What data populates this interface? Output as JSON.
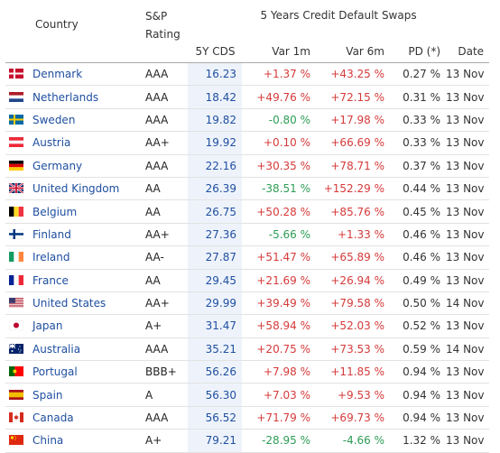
{
  "header": {
    "country": "Country",
    "rating_line1": "S&P",
    "rating_line2": "Rating",
    "group": "5 Years Credit Default Swaps",
    "cds": "5Y CDS",
    "var1m": "Var 1m",
    "var6m": "Var 6m",
    "pd": "PD (*)",
    "date": "Date"
  },
  "rows": [
    {
      "country": "Denmark",
      "flag": "flag-denmark-icon",
      "rating": "AAA",
      "cds": "16.23",
      "var1m": "+1.37 %",
      "var6m": "+43.25 %",
      "pd": "0.27 %",
      "date": "13 Nov"
    },
    {
      "country": "Netherlands",
      "flag": "flag-netherlands-icon",
      "rating": "AAA",
      "cds": "18.42",
      "var1m": "+49.76 %",
      "var6m": "+72.15 %",
      "pd": "0.31 %",
      "date": "13 Nov"
    },
    {
      "country": "Sweden",
      "flag": "flag-sweden-icon",
      "rating": "AAA",
      "cds": "19.82",
      "var1m": "-0.80 %",
      "var6m": "+17.98 %",
      "pd": "0.33 %",
      "date": "13 Nov"
    },
    {
      "country": "Austria",
      "flag": "flag-austria-icon",
      "rating": "AA+",
      "cds": "19.92",
      "var1m": "+0.10 %",
      "var6m": "+66.69 %",
      "pd": "0.33 %",
      "date": "13 Nov"
    },
    {
      "country": "Germany",
      "flag": "flag-germany-icon",
      "rating": "AAA",
      "cds": "22.16",
      "var1m": "+30.35 %",
      "var6m": "+78.71 %",
      "pd": "0.37 %",
      "date": "13 Nov"
    },
    {
      "country": "United Kingdom",
      "flag": "flag-uk-icon",
      "rating": "AA",
      "cds": "26.39",
      "var1m": "-38.51 %",
      "var6m": "+152.29 %",
      "pd": "0.44 %",
      "date": "13 Nov"
    },
    {
      "country": "Belgium",
      "flag": "flag-belgium-icon",
      "rating": "AA",
      "cds": "26.75",
      "var1m": "+50.28 %",
      "var6m": "+85.76 %",
      "pd": "0.45 %",
      "date": "13 Nov"
    },
    {
      "country": "Finland",
      "flag": "flag-finland-icon",
      "rating": "AA+",
      "cds": "27.36",
      "var1m": "-5.66 %",
      "var6m": "+1.33 %",
      "pd": "0.46 %",
      "date": "13 Nov"
    },
    {
      "country": "Ireland",
      "flag": "flag-ireland-icon",
      "rating": "AA-",
      "cds": "27.87",
      "var1m": "+51.47 %",
      "var6m": "+65.89 %",
      "pd": "0.46 %",
      "date": "13 Nov"
    },
    {
      "country": "France",
      "flag": "flag-france-icon",
      "rating": "AA",
      "cds": "29.45",
      "var1m": "+21.69 %",
      "var6m": "+26.94 %",
      "pd": "0.49 %",
      "date": "13 Nov"
    },
    {
      "country": "United States",
      "flag": "flag-usa-icon",
      "rating": "AA+",
      "cds": "29.99",
      "var1m": "+39.49 %",
      "var6m": "+79.58 %",
      "pd": "0.50 %",
      "date": "14 Nov"
    },
    {
      "country": "Japan",
      "flag": "flag-japan-icon",
      "rating": "A+",
      "cds": "31.47",
      "var1m": "+58.94 %",
      "var6m": "+52.03 %",
      "pd": "0.52 %",
      "date": "13 Nov"
    },
    {
      "country": "Australia",
      "flag": "flag-australia-icon",
      "rating": "AAA",
      "cds": "35.21",
      "var1m": "+20.75 %",
      "var6m": "+73.53 %",
      "pd": "0.59 %",
      "date": "14 Nov"
    },
    {
      "country": "Portugal",
      "flag": "flag-portugal-icon",
      "rating": "BBB+",
      "cds": "56.26",
      "var1m": "+7.98 %",
      "var6m": "+11.85 %",
      "pd": "0.94 %",
      "date": "13 Nov"
    },
    {
      "country": "Spain",
      "flag": "flag-spain-icon",
      "rating": "A",
      "cds": "56.30",
      "var1m": "+7.03 %",
      "var6m": "+9.53 %",
      "pd": "0.94 %",
      "date": "13 Nov"
    },
    {
      "country": "Canada",
      "flag": "flag-canada-icon",
      "rating": "AAA",
      "cds": "56.52",
      "var1m": "+71.79 %",
      "var6m": "+69.73 %",
      "pd": "0.94 %",
      "date": "13 Nov"
    },
    {
      "country": "China",
      "flag": "flag-china-icon",
      "rating": "A+",
      "cds": "79.21",
      "var1m": "-28.95 %",
      "var6m": "-4.66 %",
      "pd": "1.32 %",
      "date": "13 Nov"
    }
  ],
  "colors": {
    "positive": "#d63a3a",
    "negative": "#2e9c55",
    "link": "#1f4fa0",
    "cds_column_bg": "#eef3fb"
  }
}
